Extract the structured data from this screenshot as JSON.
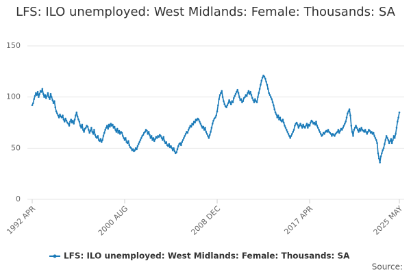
{
  "chart_data": {
    "type": "line",
    "title": "LFS: ILO unemployed: West Midlands: Female: Thousands: SA",
    "source": "Source:",
    "ylim": [
      0,
      150
    ],
    "yticks": [
      0,
      50,
      100,
      150
    ],
    "grid": true,
    "categories": [
      "1992 APR",
      null,
      null,
      null,
      null,
      null,
      null,
      null,
      null,
      null,
      null,
      null,
      null,
      null,
      null,
      null,
      null,
      null,
      null,
      null,
      null,
      null,
      null,
      null,
      null,
      null,
      null,
      null,
      null,
      null,
      null,
      null,
      null,
      null,
      null,
      null,
      null,
      null,
      null,
      null,
      null,
      null,
      null,
      null,
      null,
      null,
      null,
      null,
      null,
      null,
      null,
      null,
      null,
      null,
      null,
      null,
      null,
      null,
      null,
      null,
      null,
      null,
      null,
      null,
      null,
      null,
      null,
      null,
      null,
      null,
      null,
      null,
      null,
      null,
      null,
      null,
      null,
      null,
      null,
      null,
      null,
      null,
      null,
      null,
      null,
      null,
      null,
      null,
      null,
      null,
      null,
      null,
      null,
      null,
      null,
      null,
      null,
      null,
      null,
      null,
      "2000 AUG",
      null,
      null,
      null,
      null,
      null,
      null,
      null,
      null,
      null,
      null,
      null,
      null,
      null,
      null,
      null,
      null,
      null,
      null,
      null,
      null,
      null,
      null,
      null,
      null,
      null,
      null,
      null,
      null,
      null,
      null,
      null,
      null,
      null,
      null,
      null,
      null,
      null,
      null,
      null,
      null,
      null,
      null,
      null,
      null,
      null,
      null,
      null,
      null,
      null,
      null,
      null,
      null,
      null,
      null,
      null,
      null,
      null,
      null,
      null,
      null,
      null,
      null,
      null,
      null,
      null,
      null,
      null,
      null,
      null,
      null,
      null,
      null,
      null,
      null,
      null,
      null,
      null,
      null,
      null,
      null,
      null,
      null,
      null,
      null,
      null,
      null,
      null,
      null,
      null,
      null,
      null,
      null,
      null,
      null,
      null,
      null,
      null,
      null,
      null,
      "2008 DEC",
      null,
      null,
      null,
      null,
      null,
      null,
      null,
      null,
      null,
      null,
      null,
      null,
      null,
      null,
      null,
      null,
      null,
      null,
      null,
      null,
      null,
      null,
      null,
      null,
      null,
      null,
      null,
      null,
      null,
      null,
      null,
      null,
      null,
      null,
      null,
      null,
      null,
      null,
      null,
      null,
      null,
      null,
      null,
      null,
      null,
      null,
      null,
      null,
      null,
      null,
      null,
      null,
      null,
      null,
      null,
      null,
      null,
      null,
      null,
      null,
      null,
      null,
      null,
      null,
      null,
      null,
      null,
      null,
      null,
      null,
      null,
      null,
      null,
      null,
      null,
      null,
      null,
      null,
      null,
      null,
      null,
      null,
      null,
      null,
      null,
      null,
      null,
      null,
      null,
      null,
      null,
      null,
      null,
      null,
      null,
      null,
      null,
      null,
      null,
      "2017 APR",
      null,
      null,
      null,
      null,
      null,
      null,
      null,
      null,
      null,
      null,
      null,
      null,
      null,
      null,
      null,
      null,
      null,
      null,
      null,
      null,
      null,
      null,
      null,
      null,
      null,
      null,
      null,
      null,
      null,
      null,
      null,
      null,
      null,
      null,
      null,
      null,
      null,
      null,
      null,
      null,
      null,
      null,
      null,
      null,
      null,
      null,
      null,
      null,
      null,
      null,
      null,
      null,
      null,
      null,
      null,
      null,
      null,
      null,
      null,
      null,
      null,
      null,
      null,
      null,
      null,
      null,
      null,
      null,
      null,
      null,
      null,
      null,
      null,
      null,
      null,
      null,
      null,
      null,
      null,
      null,
      null,
      null,
      null,
      null,
      null,
      null,
      null,
      null,
      null,
      null,
      null,
      null,
      null,
      null,
      null,
      null,
      "2025 MAY"
    ],
    "series": [
      {
        "name": "LFS: ILO unemployed: West Midlands: Female: Thousands: SA",
        "color": "#1a7ab8",
        "values": [
          92,
          94,
          98,
          101,
          104,
          102,
          105,
          100,
          103,
          106,
          105,
          108,
          103,
          100,
          102,
          99,
          101,
          104,
          100,
          98,
          103,
          100,
          97,
          94,
          96,
          90,
          86,
          84,
          82,
          80,
          83,
          81,
          80,
          82,
          78,
          76,
          79,
          77,
          75,
          74,
          72,
          76,
          78,
          75,
          77,
          74,
          78,
          82,
          85,
          81,
          78,
          76,
          72,
          70,
          73,
          68,
          66,
          69,
          70,
          72,
          71,
          68,
          65,
          67,
          70,
          66,
          64,
          68,
          63,
          61,
          60,
          62,
          58,
          57,
          59,
          56,
          58,
          62,
          65,
          68,
          70,
          72,
          69,
          73,
          71,
          74,
          72,
          73,
          70,
          71,
          68,
          66,
          69,
          65,
          67,
          64,
          66,
          65,
          62,
          60,
          58,
          60,
          56,
          55,
          57,
          53,
          51,
          50,
          48,
          49,
          47,
          48,
          50,
          49,
          52,
          54,
          56,
          58,
          60,
          62,
          63,
          65,
          66,
          68,
          67,
          64,
          66,
          63,
          60,
          62,
          58,
          60,
          57,
          59,
          61,
          60,
          62,
          61,
          63,
          62,
          60,
          58,
          61,
          57,
          55,
          56,
          53,
          52,
          54,
          51,
          52,
          50,
          48,
          50,
          47,
          45,
          46,
          49,
          52,
          54,
          55,
          53,
          56,
          58,
          60,
          62,
          64,
          66,
          65,
          68,
          70,
          72,
          71,
          74,
          73,
          76,
          75,
          78,
          77,
          79,
          78,
          76,
          74,
          72,
          70,
          71,
          68,
          70,
          66,
          64,
          62,
          60,
          63,
          66,
          70,
          74,
          77,
          79,
          80,
          82,
          86,
          92,
          98,
          102,
          104,
          106,
          100,
          96,
          93,
          91,
          90,
          92,
          94,
          97,
          95,
          93,
          96,
          95,
          99,
          101,
          103,
          105,
          107,
          104,
          100,
          97,
          98,
          95,
          96,
          99,
          100,
          102,
          101,
          104,
          106,
          103,
          105,
          102,
          99,
          97,
          95,
          98,
          96,
          95,
          100,
          104,
          108,
          112,
          116,
          119,
          121,
          120,
          118,
          115,
          112,
          108,
          104,
          102,
          100,
          98,
          95,
          92,
          88,
          85,
          83,
          80,
          82,
          78,
          80,
          77,
          76,
          78,
          75,
          72,
          70,
          68,
          66,
          64,
          62,
          60,
          62,
          64,
          66,
          68,
          72,
          74,
          75,
          73,
          70,
          72,
          74,
          72,
          70,
          73,
          71,
          70,
          72,
          74,
          70,
          73,
          72,
          75,
          77,
          76,
          74,
          75,
          73,
          76,
          72,
          70,
          68,
          66,
          64,
          62,
          63,
          65,
          64,
          66,
          67,
          66,
          68,
          66,
          65,
          64,
          62,
          64,
          63,
          62,
          64,
          65,
          66,
          68,
          65,
          67,
          69,
          68,
          70,
          72,
          74,
          76,
          80,
          84,
          86,
          88,
          82,
          72,
          66,
          62,
          68,
          70,
          72,
          70,
          68,
          66,
          69,
          67,
          70,
          68,
          67,
          66,
          68,
          66,
          64,
          66,
          68,
          67,
          65,
          66,
          64,
          65,
          62,
          60,
          58,
          55,
          45,
          40,
          36,
          42,
          45,
          48,
          50,
          54,
          58,
          62,
          60,
          58,
          55,
          57,
          59,
          55,
          58,
          62,
          60,
          64,
          70,
          76,
          80,
          85
        ]
      }
    ]
  }
}
